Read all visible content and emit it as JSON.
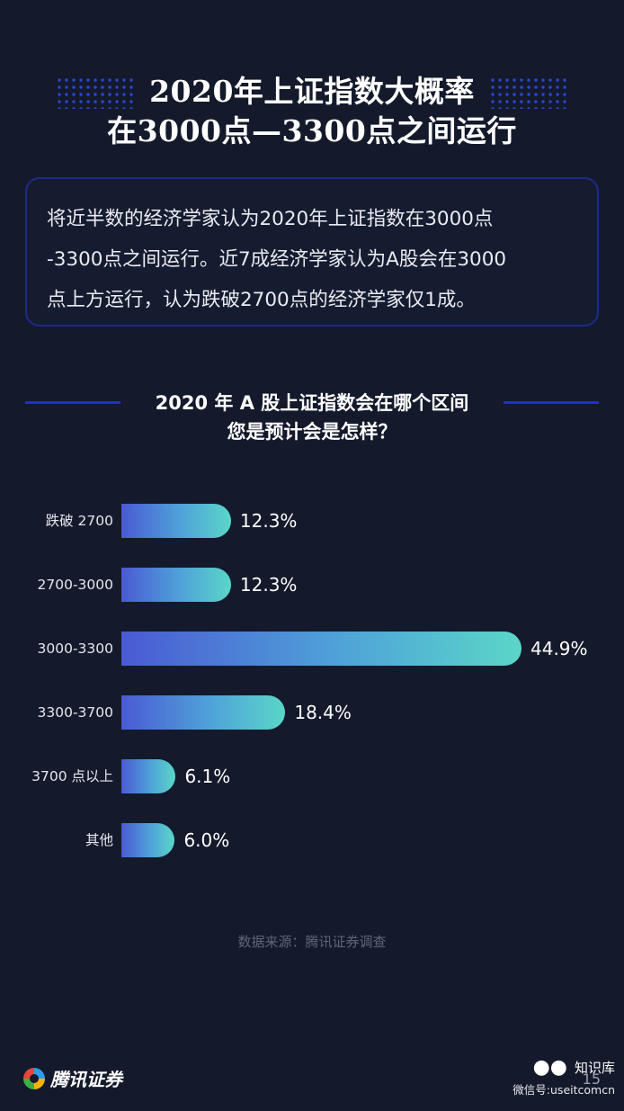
{
  "title": {
    "line1": "2020年上证指数大概率",
    "line2": "在3000点—3300点之间运行"
  },
  "intro": {
    "lines": [
      "将近半数的经济学家认为2020年上证指数在3000点",
      "-3300点之间运行。近7成经济学家认为A股会在3000",
      "点上方运行，认为跌破2700点的经济学家仅1成。"
    ]
  },
  "chart_data": {
    "type": "bar",
    "orientation": "horizontal",
    "title": "2020 年 A 股上证指数会在哪个区间",
    "subtitle": "您是预计会是怎样？",
    "categories": [
      "跌破 2700",
      "2700-3000",
      "3000-3300",
      "3300-3700",
      "3700 点以上",
      "其他"
    ],
    "values": [
      12.3,
      12.3,
      44.9,
      18.4,
      6.1,
      6.0
    ],
    "value_labels": [
      "12.3%",
      "12.3%",
      "44.9%",
      "18.4%",
      "6.1%",
      "6.0%"
    ],
    "unit": "%",
    "xlim": [
      0,
      44.9
    ],
    "grid": false,
    "colors": {
      "bar_start": "#4a5ad4",
      "bar_end": "#5ad6c8"
    }
  },
  "source": "数据来源：腾讯证券调查",
  "footer": {
    "brand": "腾讯证券",
    "wechat_name": "知识库",
    "wechat_id": "微信号:useitcomcn",
    "page_number": "15"
  },
  "colors": {
    "background": "#141a2b",
    "accent": "#1f2fd0"
  }
}
